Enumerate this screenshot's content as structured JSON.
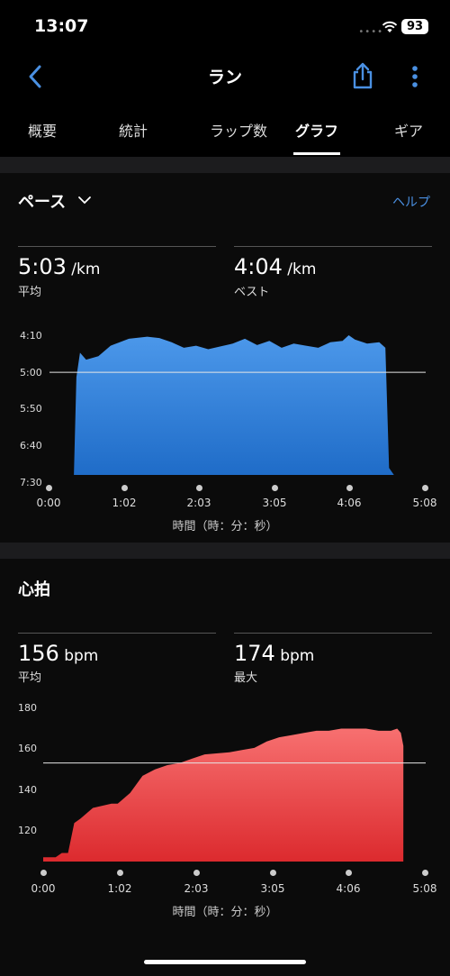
{
  "status": {
    "time": "13:07",
    "signal": "••••",
    "battery": "93"
  },
  "nav": {
    "title": "ラン",
    "back_icon": "chevron-left-icon",
    "share_icon": "share-icon",
    "more_icon": "more-vertical-icon"
  },
  "tabs": [
    "概要",
    "統計",
    "ラップ数",
    "グラフ",
    "ギア"
  ],
  "active_tab": "グラフ",
  "colors": {
    "accent": "#4a90e2",
    "pace_fill": "#2f7ed8",
    "hr_fill": "#e8363a"
  },
  "pace": {
    "title": "ペース",
    "help": "ヘルプ",
    "avg_value": "5:03",
    "avg_unit": " /km",
    "avg_label": "平均",
    "best_value": "4:04",
    "best_unit": " /km",
    "best_label": "ベスト",
    "y_ticks": [
      "4:10",
      "5:00",
      "5:50",
      "6:40",
      "7:30"
    ],
    "x_ticks": [
      "0:00",
      "1:02",
      "2:03",
      "3:05",
      "4:06",
      "5:08"
    ],
    "axis_title": "時間（時：分：秒）"
  },
  "heart": {
    "title": "心拍",
    "avg_value": "156",
    "avg_unit": " bpm",
    "avg_label": "平均",
    "max_value": "174",
    "max_unit": " bpm",
    "max_label": "最大",
    "y_ticks": [
      "180",
      "160",
      "140",
      "120"
    ],
    "x_ticks": [
      "0:00",
      "1:02",
      "2:03",
      "3:05",
      "4:06",
      "5:08"
    ],
    "axis_title": "時間（時：分：秒）"
  },
  "chart_data": [
    {
      "type": "area",
      "ylabel": "ペース",
      "xlabel": "時間（時：分：秒）",
      "x_minutes": [
        0,
        20,
        22,
        25,
        30,
        40,
        50,
        65,
        80,
        90,
        100,
        110,
        120,
        130,
        140,
        150,
        160,
        170,
        180,
        190,
        200,
        210,
        220,
        230,
        240,
        245,
        250,
        260,
        270,
        275,
        278,
        282,
        285,
        290,
        300
      ],
      "pace_sec_per_km": [
        450,
        450,
        310,
        275,
        285,
        280,
        265,
        255,
        252,
        254,
        260,
        268,
        265,
        270,
        266,
        262,
        255,
        264,
        258,
        268,
        262,
        265,
        268,
        260,
        258,
        250,
        256,
        262,
        260,
        268,
        440,
        450,
        450,
        450,
        450
      ],
      "avg_line_sec_per_km": 303,
      "ylim": [
        250,
        450
      ],
      "xlim": [
        0,
        308
      ],
      "y_reversed": true
    },
    {
      "type": "area",
      "ylabel": "心拍",
      "xlabel": "時間（時：分：秒）",
      "x_minutes": [
        0,
        10,
        15,
        20,
        25,
        30,
        40,
        55,
        60,
        70,
        80,
        90,
        100,
        110,
        120,
        130,
        150,
        160,
        170,
        180,
        190,
        200,
        210,
        220,
        230,
        240,
        250,
        260,
        270,
        280,
        285,
        288,
        290
      ],
      "bpm": [
        112,
        112,
        114,
        114,
        128,
        130,
        135,
        137,
        137,
        142,
        150,
        153,
        155,
        156,
        158,
        160,
        161,
        162,
        163,
        166,
        168,
        169,
        170,
        171,
        171,
        172,
        172,
        172,
        171,
        171,
        172,
        170,
        164
      ],
      "avg_line_bpm": 156,
      "ylim": [
        110,
        184
      ],
      "xlim": [
        0,
        308
      ]
    }
  ]
}
